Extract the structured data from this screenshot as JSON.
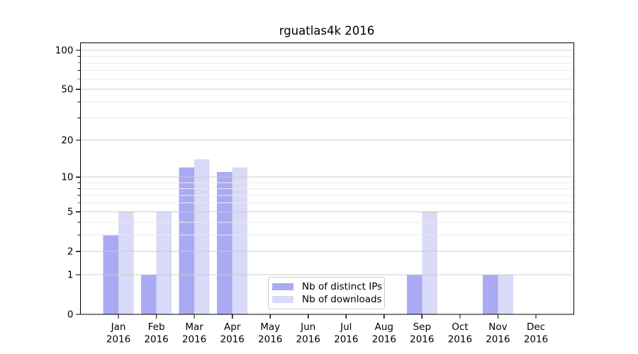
{
  "title": "rguatlas4k 2016",
  "legend": {
    "items": [
      {
        "label": "Nb of distinct IPs",
        "color": "#aaaaf4"
      },
      {
        "label": "Nb of downloads",
        "color": "#d9d9f8"
      }
    ]
  },
  "chart_data": {
    "type": "bar",
    "title": "rguatlas4k 2016",
    "x_tick_months": [
      "Jan",
      "Feb",
      "Mar",
      "Apr",
      "May",
      "Jun",
      "Jul",
      "Aug",
      "Sep",
      "Oct",
      "Nov",
      "Dec"
    ],
    "x_tick_year": "2016",
    "series": [
      {
        "name": "Nb of distinct IPs",
        "color": "#aaaaf4",
        "values": [
          3,
          1,
          12,
          11,
          0,
          0,
          0,
          0,
          1,
          0,
          1,
          0
        ]
      },
      {
        "name": "Nb of downloads",
        "color": "#d9d9f8",
        "values": [
          5,
          5,
          14,
          12,
          0,
          0,
          0,
          0,
          5,
          0,
          1,
          0
        ]
      }
    ],
    "y_scale": "log1p",
    "y_major_ticks": [
      0,
      1,
      2,
      5,
      10,
      20,
      50,
      100
    ],
    "y_minor_ticks": [
      3,
      4,
      6,
      7,
      8,
      9,
      30,
      40,
      60,
      70,
      80,
      90
    ],
    "ylim": [
      0,
      114
    ],
    "grid": "horizontal",
    "legend_position": "lower-center"
  },
  "colors": {
    "major_grid": "#cccccc",
    "minor_grid": "#ebebeb",
    "axis": "#000000",
    "text": "#000000"
  }
}
